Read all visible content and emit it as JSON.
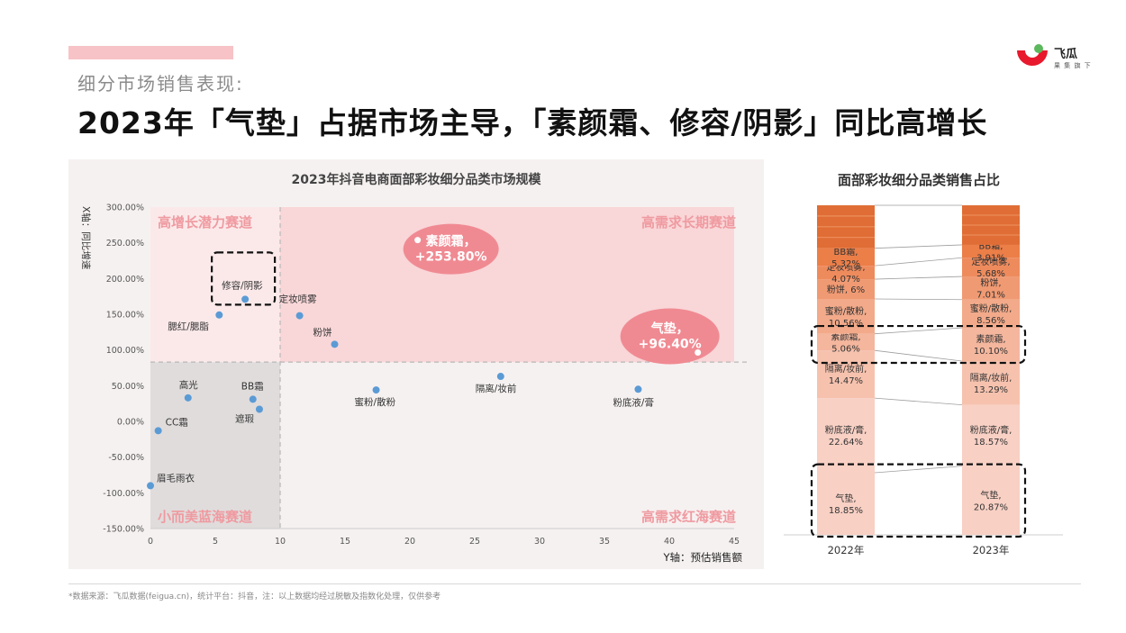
{
  "header": {
    "subtitle": "细分市场销售表现:",
    "title": "2023年「气垫」占据市场主导，「素颜霜、修容/阴影」同比高增长"
  },
  "logo": {
    "name": "飞瓜",
    "tagline": "果 集 旗 下",
    "icon": "feigua-logo-icon"
  },
  "colors": {
    "accent_pink": "#f7c3c6",
    "zone_pink": "#f9d6d8",
    "zone_gray": "#e0dcdc",
    "point_blue": "#5b9bd5",
    "bubble_pink": "#f08a92"
  },
  "chart_data": [
    {
      "type": "scatter",
      "title": "2023年抖音电商面部彩妆细分品类市场规模",
      "xlabel": "Y轴：预估销售额",
      "ylabel": "X轴：同比增速",
      "xlim": [
        0,
        45
      ],
      "ylim": [
        -150,
        300
      ],
      "x_ticks": [
        "0",
        "5",
        "10",
        "15",
        "20",
        "25",
        "30",
        "35",
        "40",
        "45"
      ],
      "y_ticks": [
        "300.00%",
        "250.00%",
        "200.00%",
        "150.00%",
        "100.00%",
        "50.00%",
        "0.00%",
        "-50.00%",
        "-100.00%",
        "-150.00%"
      ],
      "divider_x": 10,
      "divider_y": 83,
      "quadrants": [
        "高增长潜力赛道",
        "高需求长期赛道",
        "小而美蓝海赛道",
        "高需求红海赛道"
      ],
      "points": [
        {
          "label": "素颜霜，\n+253.80%",
          "x": 20.6,
          "y": 253.8,
          "highlight": "bubble"
        },
        {
          "label": "气垫，\n+96.40%",
          "x": 42.2,
          "y": 96.4,
          "highlight": "bubble"
        },
        {
          "label": "修容/阴影",
          "x": 7.3,
          "y": 171,
          "highlight": "box"
        },
        {
          "label": "腮红/腮脂",
          "x": 5.3,
          "y": 149
        },
        {
          "label": "定妆喷雾",
          "x": 11.5,
          "y": 148
        },
        {
          "label": "粉饼",
          "x": 14.2,
          "y": 108
        },
        {
          "label": "高光",
          "x": 2.9,
          "y": 33
        },
        {
          "label": "BB霜",
          "x": 7.9,
          "y": 31
        },
        {
          "label": "遮瑕",
          "x": 8.4,
          "y": 17
        },
        {
          "label": "CC霜",
          "x": 0.6,
          "y": -13
        },
        {
          "label": "眉毛雨衣",
          "x": 0.0,
          "y": -90
        },
        {
          "label": "蜜粉/散粉",
          "x": 17.4,
          "y": 44
        },
        {
          "label": "隔离/妆前",
          "x": 27.0,
          "y": 63
        },
        {
          "label": "粉底液/膏",
          "x": 37.6,
          "y": 45
        }
      ]
    },
    {
      "type": "bar",
      "title": "面部彩妆细分品类销售占比",
      "categories": [
        "2022年",
        "2023年"
      ],
      "stacked": true,
      "segments_bottom_to_top": [
        {
          "name": "气垫",
          "values": [
            18.85,
            20.87
          ],
          "labels": [
            "气垫,\n18.85%",
            "气垫,\n20.87%"
          ],
          "color": "#f8d0c4",
          "highlight": true
        },
        {
          "name": "粉底液/膏",
          "values": [
            22.64,
            18.57
          ],
          "labels": [
            "粉底液/膏,\n22.64%",
            "粉底液/膏,\n18.57%"
          ],
          "color": "#f8d0c4"
        },
        {
          "name": "隔离/妆前",
          "values": [
            14.47,
            13.29
          ],
          "labels": [
            "隔离/妆前,\n14.47%",
            "隔离/妆前,\n13.29%"
          ],
          "color": "#f6c2ae"
        },
        {
          "name": "素颜霜",
          "values": [
            5.06,
            10.1
          ],
          "labels": [
            "素颜霜,\n5.06%",
            "素颜霜,\n10.10%"
          ],
          "color": "#f4b69d",
          "highlight": true
        },
        {
          "name": "蜜粉/散粉",
          "values": [
            10.56,
            8.56
          ],
          "labels": [
            "蜜粉/散粉,\n10.56%",
            "蜜粉/散粉,\n8.56%"
          ],
          "color": "#f2aa8a"
        },
        {
          "name": "粉饼",
          "values": [
            6,
            7.01
          ],
          "labels": [
            "粉饼, 6%",
            "粉饼,\n7.01%"
          ],
          "color": "#f09a73"
        },
        {
          "name": "定妆喷雾",
          "values": [
            4.07,
            5.68
          ],
          "labels": [
            "定妆喷雾,\n4.07%",
            "定妆喷雾,\n5.68%"
          ],
          "color": "#ee8b5d"
        },
        {
          "name": "BB霜",
          "values": [
            5.32,
            3.91
          ],
          "labels": [
            "BB霜,\n5.32%",
            "BB霜,\n3.91%"
          ],
          "color": "#ec7e48"
        },
        {
          "name": "其他",
          "values": [
            13.03,
            12.01
          ],
          "labels": [
            "",
            ""
          ],
          "color": "#e06d35"
        }
      ]
    }
  ],
  "footnote": "*数据来源：飞瓜数据(feigua.cn)，统计平台：抖音，注：以上数据均经过脱敏及指数化处理，仅供参考"
}
